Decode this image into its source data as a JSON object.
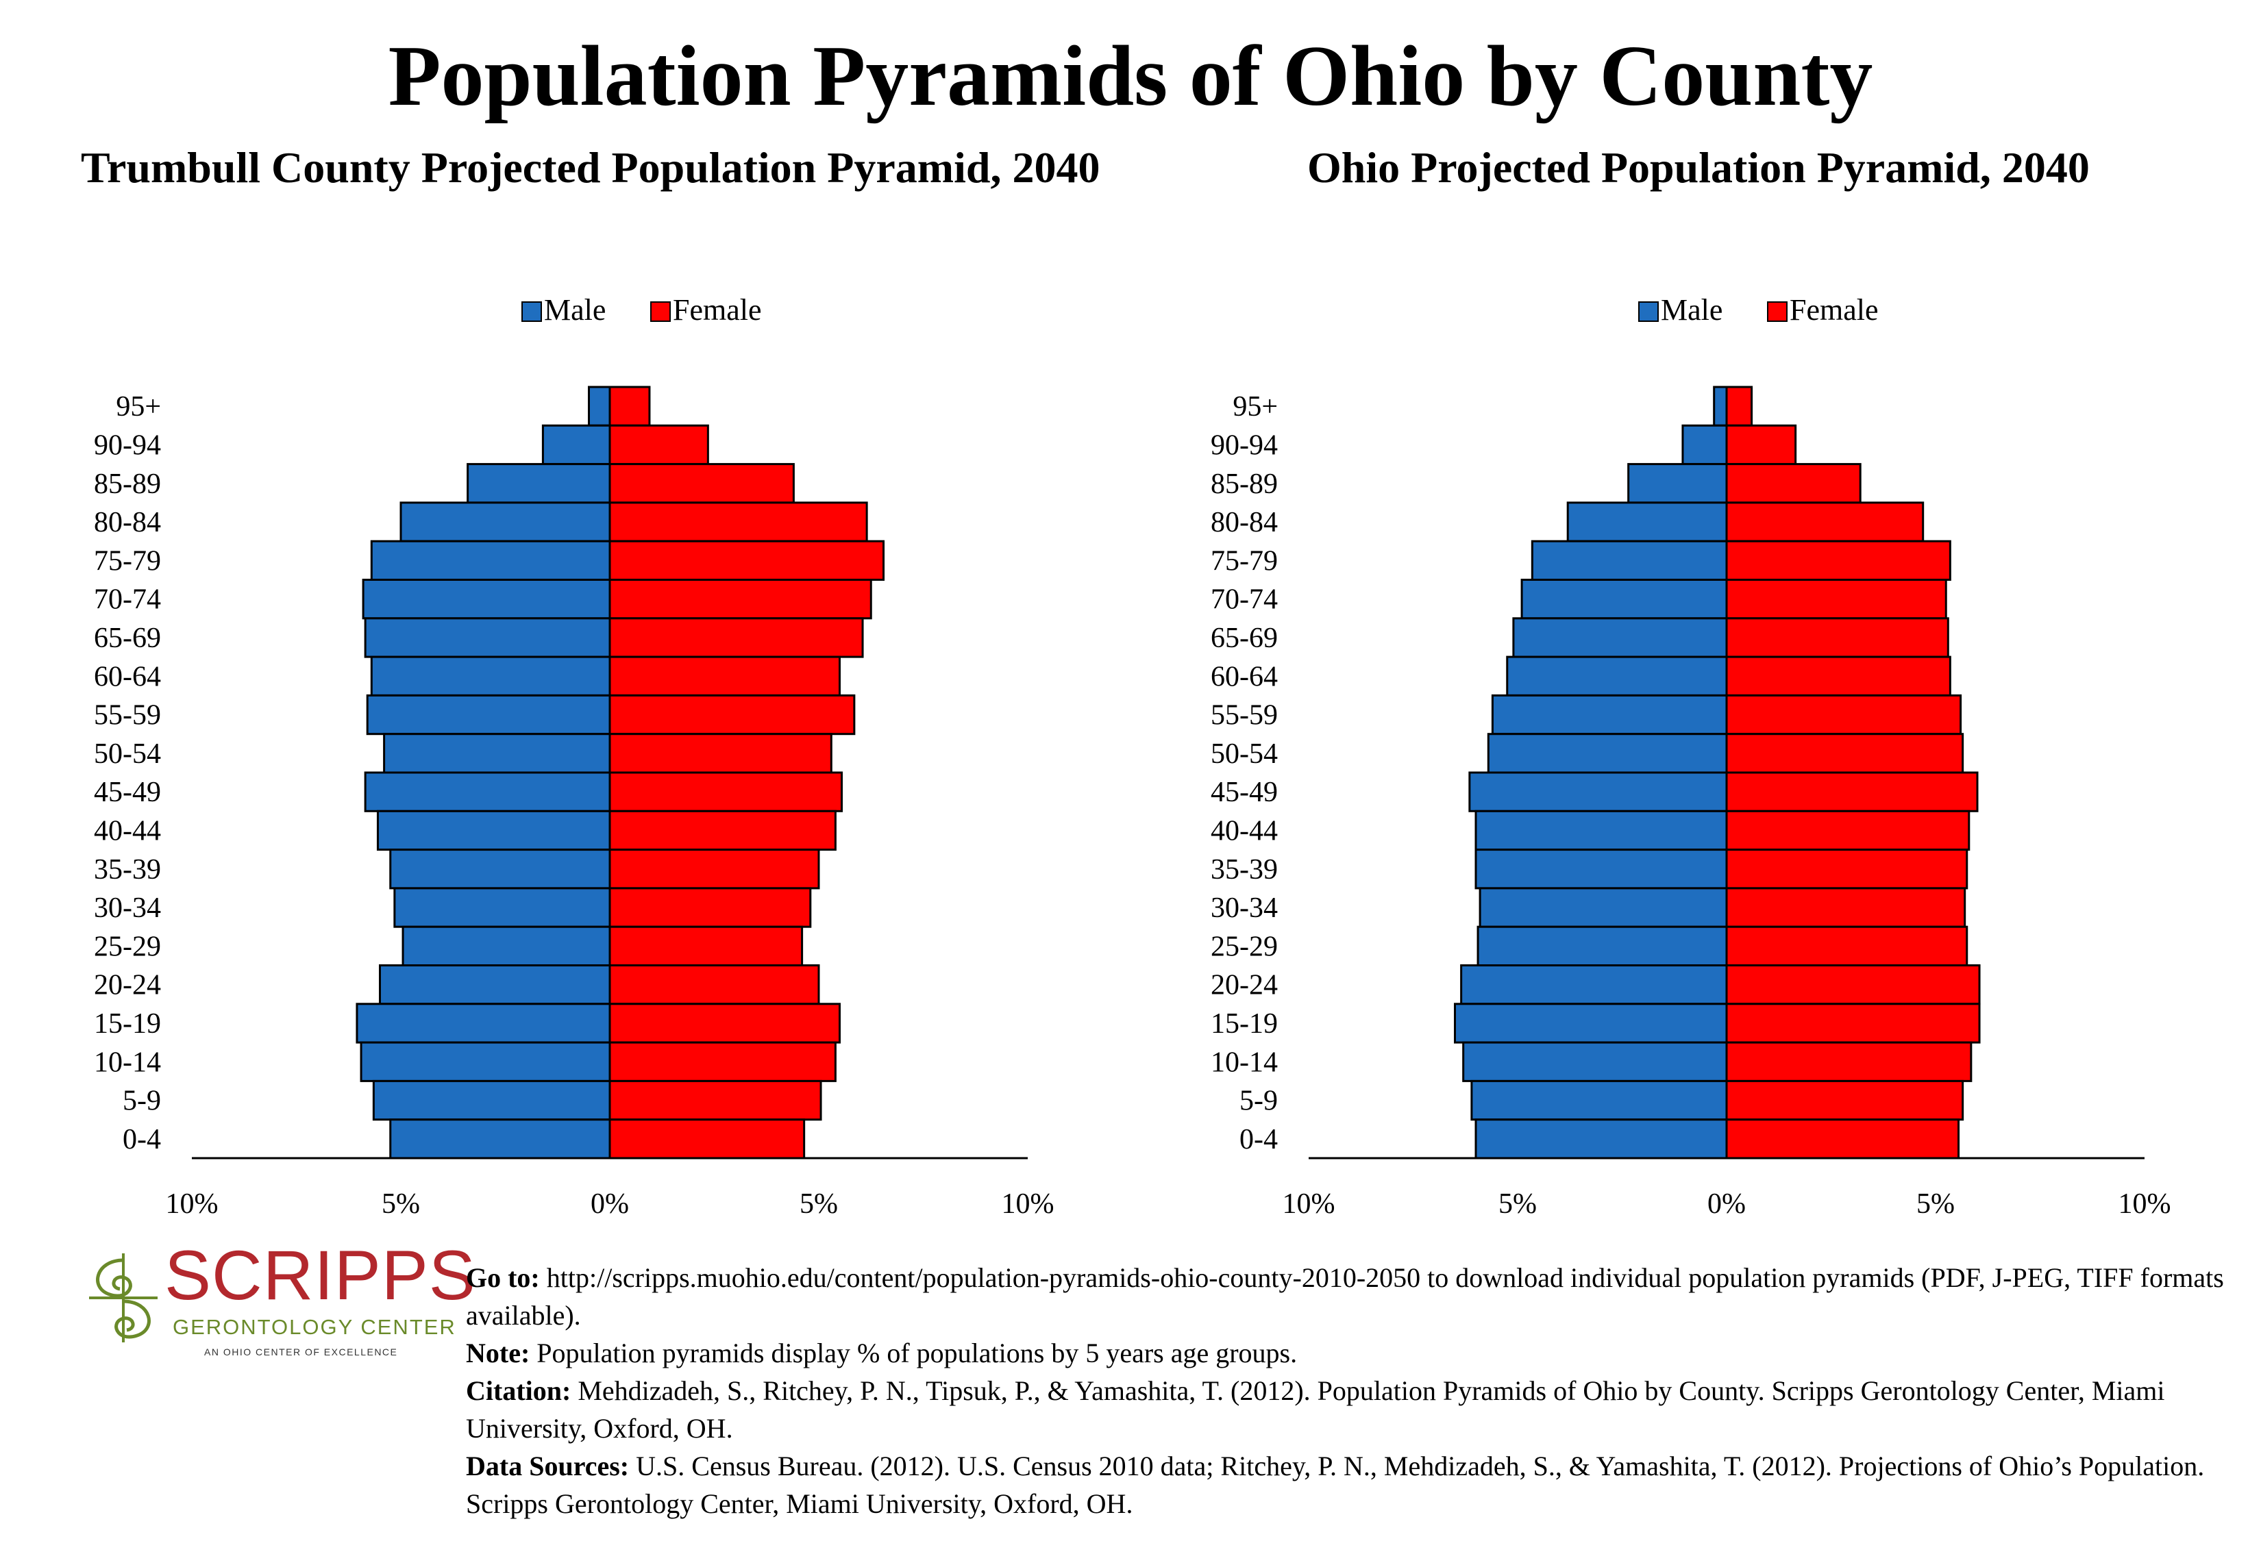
{
  "page": {
    "title": "Population Pyramids of Ohio by County"
  },
  "colors": {
    "male": "#1f6ebf",
    "female": "#ff0000"
  },
  "chart_data": [
    {
      "type": "bar",
      "orientation": "horizontal-pyramid",
      "title": "Trumbull County Projected Population Pyramid, 2040",
      "categories": [
        "95+",
        "90-94",
        "85-89",
        "80-84",
        "75-79",
        "70-74",
        "65-69",
        "60-64",
        "55-59",
        "50-54",
        "45-49",
        "40-44",
        "35-39",
        "30-34",
        "25-29",
        "20-24",
        "15-19",
        "10-14",
        "5-9",
        "0-4"
      ],
      "series": [
        {
          "name": "Male",
          "values": [
            0.5,
            1.6,
            3.4,
            5.0,
            5.7,
            5.9,
            5.85,
            5.7,
            5.8,
            5.4,
            5.85,
            5.55,
            5.25,
            5.15,
            4.95,
            5.5,
            6.05,
            5.95,
            5.65,
            5.25
          ]
        },
        {
          "name": "Female",
          "values": [
            0.95,
            2.35,
            4.4,
            6.15,
            6.55,
            6.25,
            6.05,
            5.5,
            5.85,
            5.3,
            5.55,
            5.4,
            5.0,
            4.8,
            4.6,
            5.0,
            5.5,
            5.4,
            5.05,
            4.65
          ]
        }
      ],
      "xlim": [
        -10,
        10
      ],
      "xticks": [
        "10%",
        "5%",
        "0%",
        "5%",
        "10%"
      ],
      "legend": "top"
    },
    {
      "type": "bar",
      "orientation": "horizontal-pyramid",
      "title": "Ohio Projected Population Pyramid, 2040",
      "categories": [
        "95+",
        "90-94",
        "85-89",
        "80-84",
        "75-79",
        "70-74",
        "65-69",
        "60-64",
        "55-59",
        "50-54",
        "45-49",
        "40-44",
        "35-39",
        "30-34",
        "25-29",
        "20-24",
        "15-19",
        "10-14",
        "5-9",
        "0-4"
      ],
      "series": [
        {
          "name": "Male",
          "values": [
            0.3,
            1.05,
            2.35,
            3.8,
            4.65,
            4.9,
            5.1,
            5.25,
            5.6,
            5.7,
            6.15,
            6.0,
            6.0,
            5.9,
            5.95,
            6.35,
            6.5,
            6.3,
            6.1,
            6.0
          ]
        },
        {
          "name": "Female",
          "values": [
            0.6,
            1.65,
            3.2,
            4.7,
            5.35,
            5.25,
            5.3,
            5.35,
            5.6,
            5.65,
            6.0,
            5.8,
            5.75,
            5.7,
            5.75,
            6.05,
            6.05,
            5.85,
            5.65,
            5.55
          ]
        }
      ],
      "xlim": [
        -10,
        10
      ],
      "xticks": [
        "10%",
        "5%",
        "0%",
        "5%",
        "10%"
      ],
      "legend": "top"
    }
  ],
  "logo": {
    "name": "SCRIPPS",
    "subtitle": "GERONTOLOGY CENTER",
    "tagline": "AN OHIO CENTER OF EXCELLENCE"
  },
  "notes": [
    {
      "label": "Go to:",
      "text": "http://scripps.muohio.edu/content/population-pyramids-ohio-county-2010-2050 to download individual population pyramids (PDF, J-PEG, TIFF formats available)."
    },
    {
      "label": "Note:",
      "text": "Population pyramids display % of populations by 5 years age groups."
    },
    {
      "label": "Citation:",
      "text": "Mehdizadeh, S., Ritchey, P. N., Tipsuk, P., & Yamashita, T. (2012). Population Pyramids of Ohio by County. Scripps Gerontology Center, Miami University, Oxford, OH."
    },
    {
      "label": "Data Sources:",
      "text": "U.S. Census Bureau. (2012). U.S. Census 2010 data; Ritchey, P. N., Mehdizadeh, S., & Yamashita, T. (2012). Projections of Ohio’s Population. Scripps Gerontology Center, Miami University, Oxford, OH."
    }
  ]
}
